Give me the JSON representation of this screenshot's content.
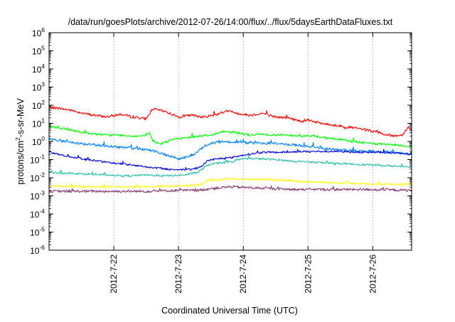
{
  "chart_data": {
    "type": "line",
    "title": "/data/run/goesPlots/archive/2012-07-26/14:00/flux/../flux/5daysEarthDataFluxes.txt",
    "xlabel": "Coordinated Universal Time (UTC)",
    "ylabel": {
      "prefix": "protons/cm",
      "sup": "2",
      "suffix": "-s-sr-MeV"
    },
    "yscale": "log",
    "ylim": [
      -6,
      6
    ],
    "y_ticks": [
      {
        "base": "10",
        "exp": "6"
      },
      {
        "base": "10",
        "exp": "5"
      },
      {
        "base": "10",
        "exp": "4"
      },
      {
        "base": "10",
        "exp": "3"
      },
      {
        "base": "10",
        "exp": "2"
      },
      {
        "base": "10",
        "exp": "1"
      },
      {
        "base": "10",
        "exp": "0"
      },
      {
        "base": "10",
        "exp": "-1"
      },
      {
        "base": "10",
        "exp": "-2"
      },
      {
        "base": "10",
        "exp": "-3"
      },
      {
        "base": "10",
        "exp": "-4"
      },
      {
        "base": "10",
        "exp": "-5"
      },
      {
        "base": "10",
        "exp": "-6"
      }
    ],
    "xlim": [
      0,
      5.6
    ],
    "x_ticks": [
      {
        "label": "2012-7-22",
        "value": 1
      },
      {
        "label": "2012-7-23",
        "value": 2
      },
      {
        "label": "2012-7-24",
        "value": 3
      },
      {
        "label": "2012-7-25",
        "value": 4
      },
      {
        "label": "2012-7-26",
        "value": 5
      }
    ],
    "grid": true,
    "series": [
      {
        "color": "#ff0000",
        "noise": 0.07,
        "points": [
          [
            0,
            1.9
          ],
          [
            0.3,
            1.75
          ],
          [
            0.6,
            1.5
          ],
          [
            0.9,
            1.35
          ],
          [
            1.1,
            1.5
          ],
          [
            1.3,
            1.35
          ],
          [
            1.5,
            1.25
          ],
          [
            1.6,
            1.8
          ],
          [
            1.8,
            1.65
          ],
          [
            2.0,
            1.35
          ],
          [
            2.2,
            1.45
          ],
          [
            2.4,
            1.35
          ],
          [
            2.6,
            1.5
          ],
          [
            2.75,
            1.7
          ],
          [
            2.9,
            1.55
          ],
          [
            3.1,
            1.45
          ],
          [
            3.3,
            1.55
          ],
          [
            3.5,
            1.35
          ],
          [
            3.7,
            1.3
          ],
          [
            3.9,
            1.1
          ],
          [
            4.0,
            1.2
          ],
          [
            4.2,
            1.0
          ],
          [
            4.5,
            0.85
          ],
          [
            4.8,
            0.7
          ],
          [
            5.0,
            0.55
          ],
          [
            5.3,
            0.3
          ],
          [
            5.45,
            0.35
          ],
          [
            5.55,
            0.8
          ],
          [
            5.6,
            0.6
          ]
        ]
      },
      {
        "color": "#00ff00",
        "noise": 0.06,
        "points": [
          [
            0,
            0.85
          ],
          [
            0.3,
            0.65
          ],
          [
            0.6,
            0.45
          ],
          [
            0.9,
            0.35
          ],
          [
            1.1,
            0.35
          ],
          [
            1.3,
            0.3
          ],
          [
            1.5,
            0.3
          ],
          [
            1.55,
            0.5
          ],
          [
            1.6,
            0.05
          ],
          [
            1.7,
            -0.15
          ],
          [
            1.9,
            0.1
          ],
          [
            2.1,
            0.2
          ],
          [
            2.3,
            0.3
          ],
          [
            2.5,
            0.35
          ],
          [
            2.7,
            0.55
          ],
          [
            2.9,
            0.5
          ],
          [
            3.1,
            0.35
          ],
          [
            3.3,
            0.4
          ],
          [
            3.5,
            0.35
          ],
          [
            3.7,
            0.35
          ],
          [
            3.9,
            0.3
          ],
          [
            4.1,
            0.3
          ],
          [
            4.3,
            0.2
          ],
          [
            4.5,
            0.1
          ],
          [
            4.8,
            -0.05
          ],
          [
            5.1,
            -0.15
          ],
          [
            5.4,
            -0.2
          ],
          [
            5.6,
            -0.3
          ]
        ]
      },
      {
        "color": "#0080ff",
        "noise": 0.07,
        "points": [
          [
            0,
            0.15
          ],
          [
            0.3,
            -0.05
          ],
          [
            0.6,
            -0.15
          ],
          [
            0.9,
            -0.25
          ],
          [
            1.2,
            -0.35
          ],
          [
            1.4,
            -0.4
          ],
          [
            1.6,
            -0.5
          ],
          [
            1.8,
            -0.75
          ],
          [
            2.0,
            -0.95
          ],
          [
            2.1,
            -0.9
          ],
          [
            2.25,
            -0.7
          ],
          [
            2.4,
            -0.25
          ],
          [
            2.5,
            -0.1
          ],
          [
            2.7,
            0.0
          ],
          [
            2.9,
            -0.05
          ],
          [
            3.2,
            -0.1
          ],
          [
            3.5,
            -0.1
          ],
          [
            3.8,
            -0.2
          ],
          [
            4.1,
            -0.3
          ],
          [
            4.4,
            -0.45
          ],
          [
            4.7,
            -0.5
          ],
          [
            5.0,
            -0.55
          ],
          [
            5.3,
            -0.6
          ],
          [
            5.6,
            -0.7
          ]
        ]
      },
      {
        "color": "#0000dd",
        "noise": 0.05,
        "points": [
          [
            0,
            -0.6
          ],
          [
            0.2,
            -0.75
          ],
          [
            0.5,
            -0.95
          ],
          [
            0.8,
            -1.1
          ],
          [
            1.0,
            -1.2
          ],
          [
            1.3,
            -1.3
          ],
          [
            1.6,
            -1.45
          ],
          [
            1.9,
            -1.55
          ],
          [
            2.2,
            -1.55
          ],
          [
            2.35,
            -1.4
          ],
          [
            2.45,
            -1.05
          ],
          [
            2.6,
            -0.95
          ],
          [
            2.8,
            -0.9
          ],
          [
            3.0,
            -0.75
          ],
          [
            3.3,
            -0.6
          ],
          [
            3.6,
            -0.6
          ],
          [
            3.9,
            -0.55
          ],
          [
            4.2,
            -0.55
          ],
          [
            4.5,
            -0.55
          ],
          [
            4.8,
            -0.6
          ],
          [
            5.1,
            -0.6
          ],
          [
            5.4,
            -0.65
          ],
          [
            5.6,
            -0.7
          ]
        ]
      },
      {
        "color": "#20c0a8",
        "noise": 0.05,
        "points": [
          [
            0,
            -1.7
          ],
          [
            0.3,
            -1.75
          ],
          [
            0.6,
            -1.8
          ],
          [
            0.9,
            -1.85
          ],
          [
            1.2,
            -1.9
          ],
          [
            1.5,
            -1.85
          ],
          [
            1.8,
            -1.9
          ],
          [
            2.1,
            -1.85
          ],
          [
            2.3,
            -1.7
          ],
          [
            2.45,
            -1.3
          ],
          [
            2.6,
            -1.2
          ],
          [
            2.8,
            -1.15
          ],
          [
            3.0,
            -0.95
          ],
          [
            3.2,
            -0.95
          ],
          [
            3.5,
            -1.0
          ],
          [
            3.8,
            -1.1
          ],
          [
            4.1,
            -1.15
          ],
          [
            4.4,
            -1.2
          ],
          [
            4.7,
            -1.25
          ],
          [
            5.0,
            -1.3
          ],
          [
            5.3,
            -1.35
          ],
          [
            5.6,
            -1.4
          ]
        ]
      },
      {
        "color": "#ffff00",
        "noise": 0.05,
        "points": [
          [
            0,
            -2.45
          ],
          [
            0.5,
            -2.5
          ],
          [
            1.0,
            -2.5
          ],
          [
            1.5,
            -2.5
          ],
          [
            2.0,
            -2.45
          ],
          [
            2.3,
            -2.4
          ],
          [
            2.5,
            -2.15
          ],
          [
            2.8,
            -2.05
          ],
          [
            3.1,
            -2.1
          ],
          [
            3.4,
            -2.1
          ],
          [
            3.8,
            -2.2
          ],
          [
            4.2,
            -2.25
          ],
          [
            4.6,
            -2.3
          ],
          [
            5.0,
            -2.35
          ],
          [
            5.6,
            -2.35
          ]
        ]
      },
      {
        "color": "#883870",
        "noise": 0.07,
        "points": [
          [
            0,
            -2.75
          ],
          [
            0.5,
            -2.75
          ],
          [
            1.0,
            -2.75
          ],
          [
            1.5,
            -2.75
          ],
          [
            2.0,
            -2.7
          ],
          [
            2.3,
            -2.7
          ],
          [
            2.5,
            -2.6
          ],
          [
            2.8,
            -2.5
          ],
          [
            3.1,
            -2.55
          ],
          [
            3.4,
            -2.6
          ],
          [
            3.8,
            -2.65
          ],
          [
            4.2,
            -2.65
          ],
          [
            4.6,
            -2.65
          ],
          [
            5.0,
            -2.65
          ],
          [
            5.6,
            -2.7
          ]
        ]
      }
    ]
  }
}
